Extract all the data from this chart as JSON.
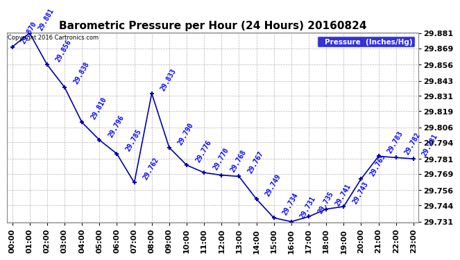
{
  "title": "Barometric Pressure per Hour (24 Hours) 20160824",
  "hours": [
    0,
    1,
    2,
    3,
    4,
    5,
    6,
    7,
    8,
    9,
    10,
    11,
    12,
    13,
    14,
    15,
    16,
    17,
    18,
    19,
    20,
    21,
    22,
    23
  ],
  "values": [
    29.87,
    29.881,
    29.856,
    29.838,
    29.81,
    29.796,
    29.785,
    29.762,
    29.833,
    29.79,
    29.776,
    29.77,
    29.768,
    29.767,
    29.749,
    29.734,
    29.731,
    29.735,
    29.741,
    29.743,
    29.765,
    29.783,
    29.782,
    29.781
  ],
  "xlabels": [
    "00:00",
    "01:00",
    "02:00",
    "03:00",
    "04:00",
    "05:00",
    "06:00",
    "07:00",
    "08:00",
    "09:00",
    "10:00",
    "11:00",
    "12:00",
    "13:00",
    "14:00",
    "15:00",
    "16:00",
    "17:00",
    "18:00",
    "19:00",
    "20:00",
    "21:00",
    "22:00",
    "23:00"
  ],
  "ymin": 29.731,
  "ymax": 29.881,
  "yticks": [
    29.731,
    29.744,
    29.756,
    29.769,
    29.781,
    29.794,
    29.806,
    29.819,
    29.831,
    29.843,
    29.856,
    29.869,
    29.881
  ],
  "line_color": "#0000AA",
  "marker_color": "#0000AA",
  "label_color": "#0000FF",
  "grid_color": "#AAAAAA",
  "background_color": "#FFFFFF",
  "plot_bg_color": "#FFFFFF",
  "legend_label": "Pressure  (Inches/Hg)",
  "legend_bg": "#0000CC",
  "legend_text_color": "#FFFFFF",
  "copyright_text": "Copyright 2016 Cartronics.com",
  "title_fontsize": 11,
  "label_fontsize": 7,
  "tick_fontsize": 8,
  "label_rotation": 60
}
